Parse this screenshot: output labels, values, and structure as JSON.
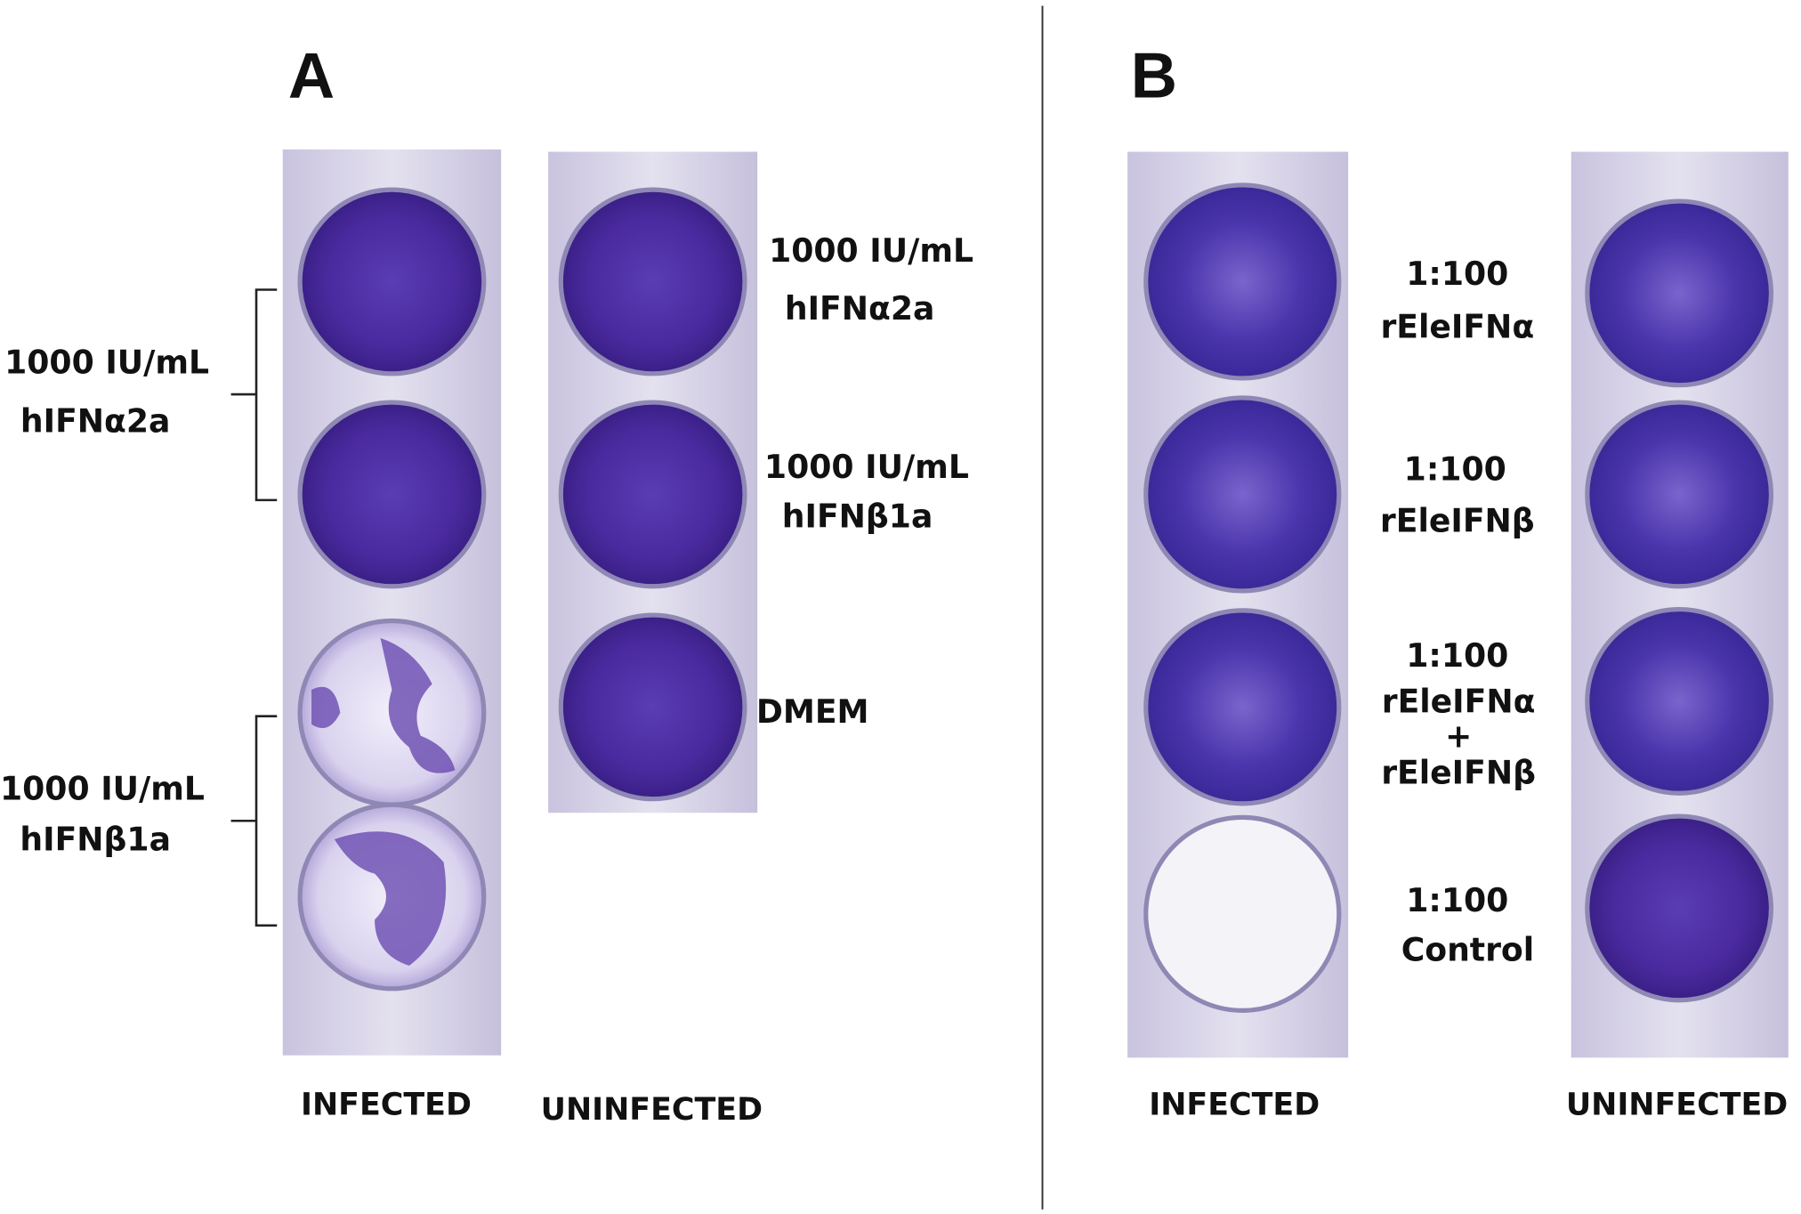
{
  "panel_a": {
    "label": "A",
    "infected_groups": [
      [
        "1000 IU/mL",
        "hIFNα2a"
      ],
      [
        "1000 IU/mL",
        "hIFNβ1a"
      ]
    ],
    "uninfected_rows": [
      [
        "1000 IU/mL",
        "hIFNα2a"
      ],
      [
        "1000 IU/mL",
        "hIFNβ1a"
      ],
      [
        "DMEM"
      ]
    ],
    "infected_caption": "INFECTED",
    "uninfected_caption": "UNINFECTED"
  },
  "panel_b": {
    "label": "B",
    "rows": [
      [
        "1:100",
        "rEleIFNα"
      ],
      [
        "1:100",
        "rEleIFNβ"
      ],
      [
        "1:100",
        "rEleIFNα",
        "+",
        "rEleIFNβ"
      ],
      [
        "1:100",
        "Control"
      ]
    ],
    "infected_caption": "INFECTED",
    "uninfected_caption": "UNINFECTED"
  }
}
